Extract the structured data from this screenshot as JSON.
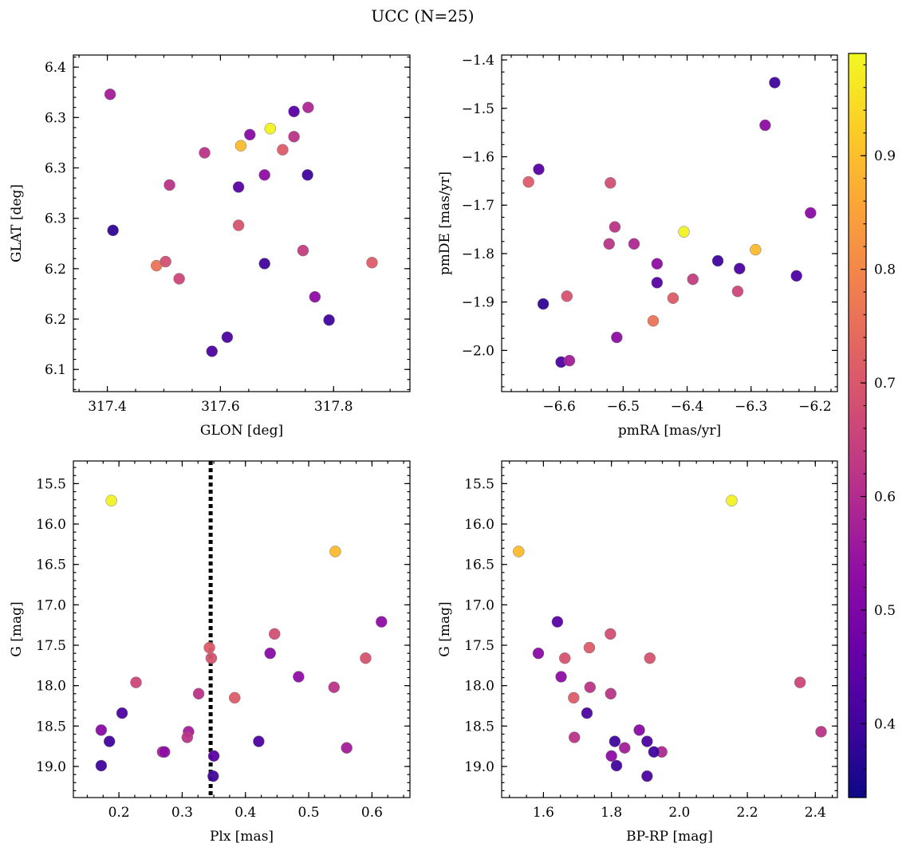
{
  "title": "UCC (N=25)",
  "colorbar": {
    "range": [
      0.335,
      0.99
    ],
    "ticks": [
      0.4,
      0.5,
      0.6,
      0.7,
      0.8,
      0.9
    ],
    "colormap": "plasma"
  },
  "chart_data": [
    {
      "type": "scatter",
      "xlabel": "GLON [deg]",
      "ylabel": "GLAT [deg]",
      "xlim": [
        317.34,
        317.935
      ],
      "ylim": [
        6.078,
        6.412
      ],
      "xticks": [
        317.4,
        317.6,
        317.8
      ],
      "yticks": [
        6.1,
        6.15,
        6.2,
        6.25,
        6.3,
        6.35,
        6.4
      ],
      "xminor": 0.05,
      "yminor": 0.01,
      "x": [
        317.405,
        317.755,
        317.73,
        317.688,
        317.652,
        317.636,
        317.73,
        317.71,
        317.572,
        317.678,
        317.754,
        317.51,
        317.632,
        317.632,
        317.41,
        317.746,
        317.487,
        317.503,
        317.678,
        317.868,
        317.527,
        317.767,
        317.792,
        317.612,
        317.585
      ],
      "y": [
        6.373,
        6.36,
        6.356,
        6.339,
        6.333,
        6.322,
        6.331,
        6.318,
        6.315,
        6.293,
        6.293,
        6.283,
        6.281,
        6.243,
        6.238,
        6.218,
        6.203,
        6.207,
        6.205,
        6.206,
        6.19,
        6.172,
        6.149,
        6.132,
        6.118
      ],
      "c": [
        0.57,
        0.59,
        0.44,
        0.98,
        0.52,
        0.89,
        0.62,
        0.71,
        0.62,
        0.53,
        0.4,
        0.62,
        0.44,
        0.69,
        0.38,
        0.64,
        0.76,
        0.68,
        0.4,
        0.71,
        0.66,
        0.53,
        0.4,
        0.42,
        0.42
      ]
    },
    {
      "type": "scatter",
      "xlabel": "pmRA [mas/yr]",
      "ylabel": "pmDE [mas/yr]",
      "xlim": [
        -6.69,
        -6.165
      ],
      "ylim": [
        -2.085,
        -1.39
      ],
      "xticks": [
        -6.6,
        -6.5,
        -6.4,
        -6.3,
        -6.2
      ],
      "yticks": [
        -2.0,
        -1.9,
        -1.8,
        -1.7,
        -1.6,
        -1.5,
        -1.4
      ],
      "xminor": 0.025,
      "yminor": 0.025,
      "x": [
        -6.263,
        -6.278,
        -6.632,
        -6.648,
        -6.52,
        -6.207,
        -6.513,
        -6.405,
        -6.293,
        -6.522,
        -6.483,
        -6.352,
        -6.447,
        -6.318,
        -6.229,
        -6.391,
        -6.447,
        -6.588,
        -6.625,
        -6.321,
        -6.422,
        -6.453,
        -6.51,
        -6.597,
        -6.584
      ],
      "y": [
        -1.447,
        -1.535,
        -1.626,
        -1.652,
        -1.654,
        -1.716,
        -1.745,
        -1.755,
        -1.792,
        -1.78,
        -1.78,
        -1.815,
        -1.821,
        -1.831,
        -1.846,
        -1.853,
        -1.86,
        -1.888,
        -1.904,
        -1.878,
        -1.892,
        -1.939,
        -1.973,
        -2.024,
        -2.021
      ],
      "c": [
        0.4,
        0.53,
        0.44,
        0.71,
        0.68,
        0.52,
        0.62,
        0.98,
        0.89,
        0.62,
        0.59,
        0.4,
        0.53,
        0.42,
        0.42,
        0.64,
        0.44,
        0.69,
        0.38,
        0.66,
        0.71,
        0.76,
        0.53,
        0.42,
        0.57
      ]
    },
    {
      "type": "scatter",
      "xlabel": "Plx [mas]",
      "ylabel": "G [mag]",
      "xlim": [
        0.128,
        0.66
      ],
      "ylim": [
        19.385,
        15.22
      ],
      "xticks": [
        0.2,
        0.3,
        0.4,
        0.5,
        0.6
      ],
      "yticks": [
        15.5,
        16.0,
        16.5,
        17.0,
        17.5,
        18.0,
        18.5,
        19.0
      ],
      "xminor": 0.025,
      "yminor": 0.1,
      "vline": 0.345,
      "x": [
        0.188,
        0.542,
        0.615,
        0.446,
        0.343,
        0.439,
        0.346,
        0.59,
        0.484,
        0.227,
        0.54,
        0.326,
        0.383,
        0.205,
        0.172,
        0.31,
        0.308,
        0.185,
        0.421,
        0.269,
        0.272,
        0.56,
        0.35,
        0.172,
        0.349
      ],
      "y": [
        15.71,
        16.34,
        17.21,
        17.36,
        17.53,
        17.6,
        17.66,
        17.66,
        17.89,
        17.96,
        18.02,
        18.1,
        18.15,
        18.34,
        18.55,
        18.57,
        18.64,
        18.69,
        18.69,
        18.82,
        18.82,
        18.77,
        18.87,
        18.99,
        19.12
      ],
      "c": [
        0.98,
        0.89,
        0.53,
        0.68,
        0.71,
        0.52,
        0.69,
        0.69,
        0.53,
        0.66,
        0.62,
        0.62,
        0.71,
        0.42,
        0.52,
        0.57,
        0.62,
        0.4,
        0.42,
        0.59,
        0.53,
        0.57,
        0.44,
        0.4,
        0.4
      ]
    },
    {
      "type": "scatter",
      "xlabel": "BP-RP [mag]",
      "ylabel": "G [mag]",
      "xlim": [
        1.477,
        2.465
      ],
      "ylim": [
        19.385,
        15.22
      ],
      "xticks": [
        1.6,
        1.8,
        2.0,
        2.2,
        2.4
      ],
      "yticks": [
        15.5,
        16.0,
        16.5,
        17.0,
        17.5,
        18.0,
        18.5,
        19.0
      ],
      "xminor": 0.05,
      "yminor": 0.1,
      "x": [
        2.154,
        1.527,
        1.641,
        1.585,
        1.797,
        1.735,
        1.663,
        1.913,
        1.652,
        2.355,
        1.737,
        1.798,
        1.689,
        1.728,
        1.882,
        2.417,
        1.691,
        1.81,
        1.905,
        1.839,
        1.8,
        1.948,
        1.925,
        1.815,
        1.905
      ],
      "y": [
        15.71,
        16.34,
        17.21,
        17.6,
        17.36,
        17.53,
        17.66,
        17.66,
        17.89,
        17.96,
        18.02,
        18.1,
        18.15,
        18.34,
        18.55,
        18.57,
        18.64,
        18.69,
        18.69,
        18.77,
        18.87,
        18.82,
        18.82,
        18.99,
        19.12
      ],
      "c": [
        0.98,
        0.89,
        0.44,
        0.52,
        0.68,
        0.71,
        0.69,
        0.69,
        0.53,
        0.66,
        0.62,
        0.62,
        0.71,
        0.42,
        0.52,
        0.62,
        0.62,
        0.4,
        0.42,
        0.57,
        0.53,
        0.59,
        0.4,
        0.4,
        0.42
      ]
    }
  ]
}
